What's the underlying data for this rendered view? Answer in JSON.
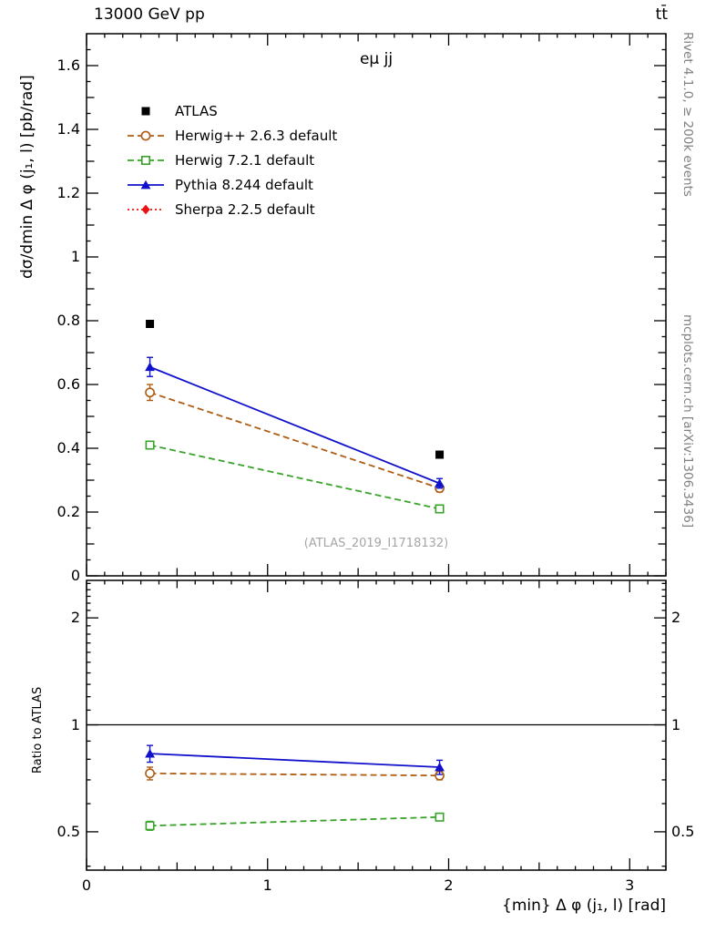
{
  "header": {
    "beam_energy": "13000 GeV pp",
    "process": "tt̄"
  },
  "side_notes": {
    "top_right": "Rivet 4.1.0, ≥ 200k events",
    "bottom_right": "mcplots.cern.ch [arXiv:1306.3436]"
  },
  "watermark": "(ATLAS_2019_I1718132)",
  "chart_data": {
    "type": "line",
    "title": "eμ jj",
    "xlabel": "{min} Δ φ (j₁, l) [rad]",
    "ylabel": "dσ/dmin Δ φ (j₁, l) [pb/rad]",
    "ratio_ylabel": "Ratio to ATLAS",
    "legend_position": "top-left",
    "grid": false,
    "xlim": [
      0,
      3.2
    ],
    "ylim": [
      0,
      1.7
    ],
    "ratio_ylim": [
      0.39,
      2.55
    ],
    "ratio_scale": "log",
    "x_ticks": [
      0,
      1,
      2,
      3
    ],
    "y_ticks": [
      0,
      0.2,
      0.4,
      0.6,
      0.8,
      1,
      1.2,
      1.4,
      1.6
    ],
    "ratio_ticks": [
      0.5,
      1,
      2
    ],
    "x": [
      0.35,
      1.95
    ],
    "series": [
      {
        "name": "ATLAS",
        "color": "#000000",
        "marker": "square-filled",
        "line": "none",
        "values": [
          0.79,
          0.38
        ],
        "errors": [
          0.01,
          0.008
        ],
        "ratio": [
          1,
          1
        ],
        "ratio_errors": [
          0,
          0
        ]
      },
      {
        "name": "Herwig++ 2.6.3 default",
        "color": "#b05c12",
        "marker": "circle-open",
        "line": "dashed",
        "values": [
          0.575,
          0.275
        ],
        "errors": [
          0.025,
          0.012
        ],
        "ratio": [
          0.73,
          0.72
        ],
        "ratio_errors": [
          0.03,
          0.02
        ]
      },
      {
        "name": "Herwig 7.2.1 default",
        "color": "#38a329",
        "marker": "square-open",
        "line": "dashed",
        "values": [
          0.41,
          0.21
        ],
        "errors": [
          0.012,
          0.008
        ],
        "ratio": [
          0.52,
          0.55
        ],
        "ratio_errors": [
          0.015,
          0.012
        ]
      },
      {
        "name": "Pythia 8.244 default",
        "color": "#1111cc",
        "marker": "triangle-filled",
        "line": "solid",
        "values": [
          0.655,
          0.29
        ],
        "errors": [
          0.03,
          0.015
        ],
        "ratio": [
          0.83,
          0.76
        ],
        "ratio_errors": [
          0.045,
          0.035
        ]
      },
      {
        "name": "Sherpa 2.2.5 default",
        "color": "#ee1111",
        "marker": "diamond-filled",
        "line": "dotted",
        "values": [],
        "errors": [],
        "ratio": [],
        "ratio_errors": []
      }
    ]
  }
}
